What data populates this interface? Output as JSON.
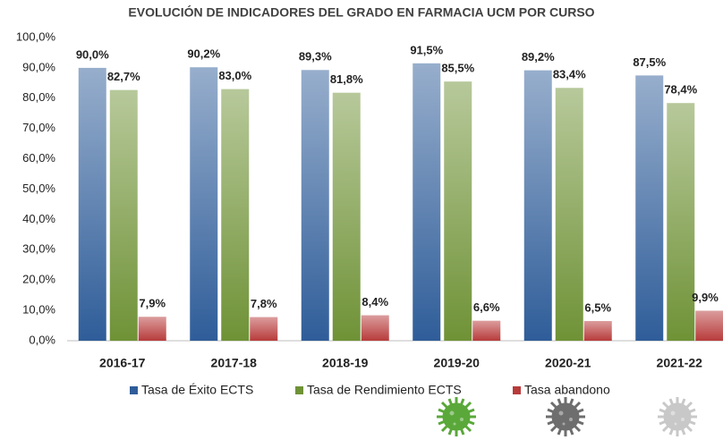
{
  "chart_data": {
    "type": "bar",
    "title": "EVOLUCIÓN DE INDICADORES DEL GRADO EN FARMACIA UCM POR CURSO",
    "categories": [
      "2016-17",
      "2017-18",
      "2018-19",
      "2019-20",
      "2020-21",
      "2021-22"
    ],
    "series": [
      {
        "name": "Tasa de Éxito ECTS",
        "color": "#2f5d99",
        "label_color": "#1f6fc0",
        "values": [
          90.0,
          90.2,
          89.3,
          91.5,
          89.2,
          87.5
        ],
        "value_labels": [
          "90,0%",
          "90,2%",
          "89,3%",
          "91,5%",
          "89,2%",
          "87,5%"
        ]
      },
      {
        "name": "Tasa de Rendimiento ECTS",
        "color": "#6f9236",
        "label_color": "#2fb34a",
        "values": [
          82.7,
          83.0,
          81.8,
          85.5,
          83.4,
          78.4
        ],
        "value_labels": [
          "82,7%",
          "83,0%",
          "81,8%",
          "85,5%",
          "83,4%",
          "78,4%"
        ]
      },
      {
        "name": "Tasa abandono",
        "color": "#b83b3b",
        "label_color": "#c00000",
        "values": [
          7.9,
          7.8,
          8.4,
          6.6,
          6.5,
          9.9
        ],
        "value_labels": [
          "7,9%",
          "7,8%",
          "8,4%",
          "6,6%",
          "6,5%",
          "9,9%"
        ]
      }
    ],
    "ylim": [
      0,
      100
    ],
    "yticks": [
      {
        "value": 0,
        "label": "0,0%"
      },
      {
        "value": 10,
        "label": "10,0%"
      },
      {
        "value": 20,
        "label": "20,0%"
      },
      {
        "value": 30,
        "label": "30,0%"
      },
      {
        "value": 40,
        "label": "40,0%"
      },
      {
        "value": 50,
        "label": "50,0%"
      },
      {
        "value": 60,
        "label": "60,0%"
      },
      {
        "value": 70,
        "label": "70,0%"
      },
      {
        "value": 80,
        "label": "80,0%"
      },
      {
        "value": 90,
        "label": "90,0%"
      },
      {
        "value": 100,
        "label": "100,0%"
      }
    ],
    "grid": false,
    "legend": "bottom"
  }
}
